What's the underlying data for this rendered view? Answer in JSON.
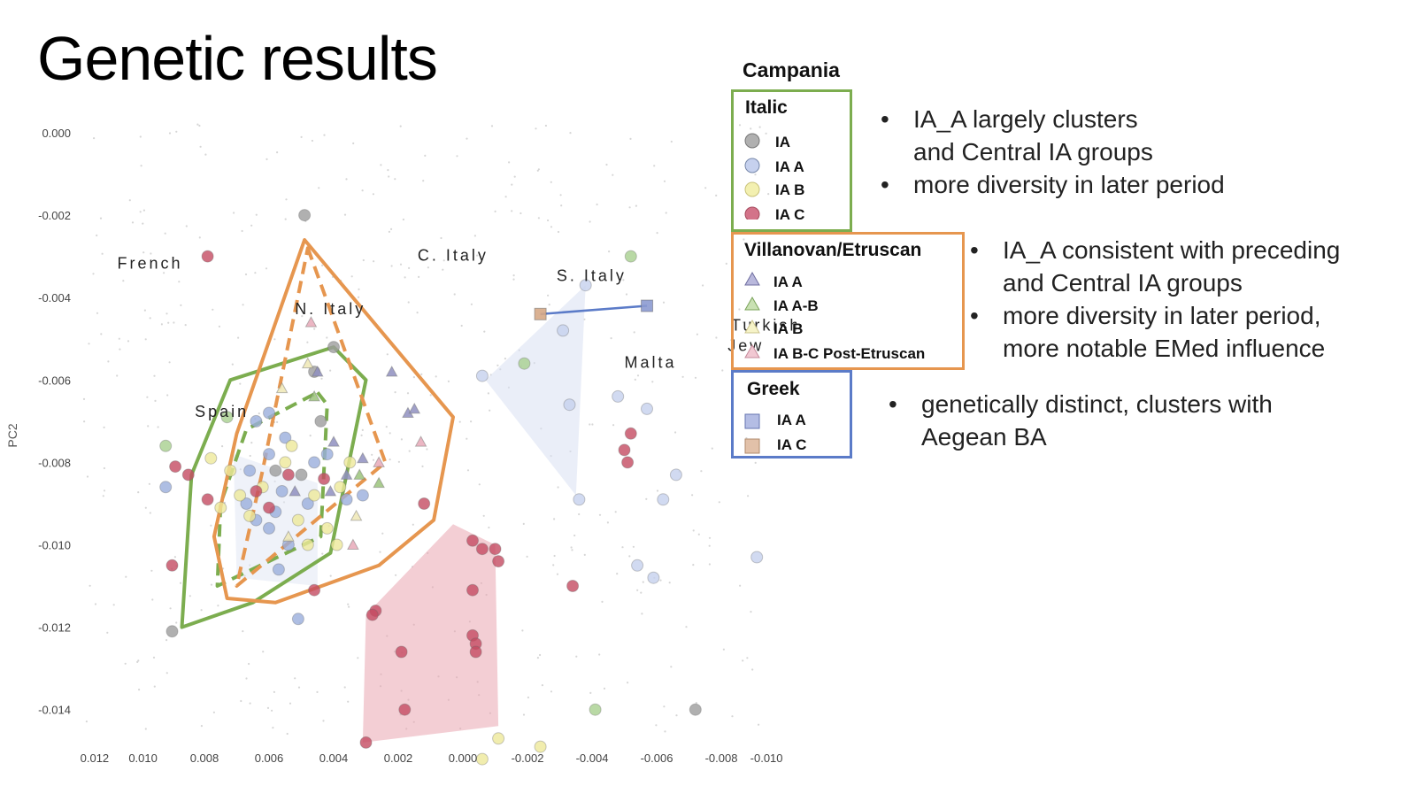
{
  "slide_title": "Genetic results",
  "legend": {
    "title": "Campania",
    "groups": [
      {
        "name": "Italic",
        "border": "#7cad4f",
        "entries": [
          {
            "label": "IA",
            "marker": "circle",
            "color": "#b0b0b0"
          },
          {
            "label": "IA A",
            "marker": "circle",
            "color": "#c6d1ee"
          },
          {
            "label": "IA B",
            "marker": "circle",
            "color": "#f3f0b0"
          },
          {
            "label": "IA C",
            "marker": "circle",
            "color": "#d37389"
          }
        ]
      },
      {
        "name": "Villanovan/Etruscan",
        "border": "#e6964f",
        "entries": [
          {
            "label": "IA A",
            "marker": "triangle",
            "color": "#b9b8dc"
          },
          {
            "label": "IA A-B",
            "marker": "triangle",
            "color": "#c9e1b3"
          },
          {
            "label": "IA B",
            "marker": "triangle",
            "color": "#f6f3c8"
          },
          {
            "label": "IA B-C Post-Etruscan",
            "marker": "triangle",
            "color": "#f1c8d2"
          }
        ]
      },
      {
        "name": "Greek",
        "border": "#5b7bc8",
        "entries": [
          {
            "label": "IA A",
            "marker": "square",
            "color": "#b4bde4"
          },
          {
            "label": "IA C",
            "marker": "square",
            "color": "#e2c1a9"
          }
        ]
      }
    ]
  },
  "notes": {
    "italic": [
      "IA_A largely clusters and Central IA groups",
      "more diversity in later period"
    ],
    "etruscan": [
      "IA_A consistent with preceding and Central IA groups",
      "more diversity in later period, more notable EMed influence"
    ],
    "greek": [
      "genetically distinct, clusters with Aegean BA"
    ],
    "bullet": "•"
  },
  "chart_data": {
    "type": "scatter",
    "ylabel": "PC2",
    "xlabel": "",
    "x_reversed": true,
    "xlim": [
      0.012,
      -0.01
    ],
    "ylim": [
      -0.0152,
      0.0002
    ],
    "x_ticks": [
      "0.012",
      "0.010",
      "0.008",
      "0.006",
      "0.004",
      "0.002",
      "0.000",
      "-0.002",
      "-0.004",
      "-0.006",
      "-0.008",
      "-0.010"
    ],
    "x_tick_values": [
      0.0114,
      0.0099,
      0.008,
      0.006,
      0.004,
      0.002,
      0.0,
      -0.002,
      -0.004,
      -0.006,
      -0.008,
      -0.0094
    ],
    "y_ticks": [
      "0.000",
      "-0.002",
      "-0.004",
      "-0.006",
      "-0.008",
      "-0.010",
      "-0.012",
      "-0.014"
    ],
    "y_tick_values": [
      0.0,
      -0.002,
      -0.004,
      -0.006,
      -0.008,
      -0.01,
      -0.012,
      -0.014
    ],
    "grid": false,
    "region_labels": [
      {
        "text": "French",
        "x": 0.0107,
        "y": -0.0033
      },
      {
        "text": "N. Italy",
        "x": 0.0052,
        "y": -0.0044
      },
      {
        "text": "C. Italy",
        "x": 0.0014,
        "y": -0.0031
      },
      {
        "text": "S. Italy",
        "x": -0.0029,
        "y": -0.0036
      },
      {
        "text": "Malta",
        "x": -0.005,
        "y": -0.0057
      },
      {
        "text": "Turkish",
        "x": -0.0083,
        "y": -0.0048
      },
      {
        "text": "Jew",
        "x": -0.0082,
        "y": -0.0053
      },
      {
        "text": "Spain",
        "x": 0.0083,
        "y": -0.0069
      }
    ],
    "hulls": [
      {
        "series": "Italic IA A hull",
        "color": "#7cad4f",
        "style": "solid",
        "points": [
          [
            0.0072,
            -0.006
          ],
          [
            0.004,
            -0.0052
          ],
          [
            0.003,
            -0.006
          ],
          [
            0.0041,
            -0.0102
          ],
          [
            0.0065,
            -0.0114
          ],
          [
            0.0087,
            -0.012
          ],
          [
            0.0084,
            -0.0083
          ]
        ]
      },
      {
        "series": "Villanovan IA A-B hull",
        "color": "#7cad4f",
        "style": "dashed",
        "points": [
          [
            0.0045,
            -0.0063
          ],
          [
            0.0042,
            -0.0066
          ],
          [
            0.0044,
            -0.0098
          ],
          [
            0.0076,
            -0.011
          ],
          [
            0.0075,
            -0.009
          ],
          [
            0.0067,
            -0.0072
          ]
        ]
      },
      {
        "series": "Villanovan IA A hull",
        "color": "#e6964f",
        "style": "solid",
        "points": [
          [
            0.0049,
            -0.0026
          ],
          [
            0.0003,
            -0.0069
          ],
          [
            0.0009,
            -0.0094
          ],
          [
            0.0026,
            -0.0105
          ],
          [
            0.0058,
            -0.0114
          ],
          [
            0.0073,
            -0.0113
          ],
          [
            0.0077,
            -0.0098
          ],
          [
            0.007,
            -0.0073
          ]
        ]
      },
      {
        "series": "Villanovan IA B hull",
        "color": "#e6964f",
        "style": "dashed",
        "points": [
          [
            0.0048,
            -0.0028
          ],
          [
            0.0024,
            -0.008
          ],
          [
            0.007,
            -0.011
          ],
          [
            0.0062,
            -0.0082
          ]
        ]
      }
    ],
    "fills": [
      {
        "series": "Italic IA C cluster",
        "color": "#e9a6b0",
        "points": [
          [
            0.0003,
            -0.0095
          ],
          [
            -0.001,
            -0.01
          ],
          [
            -0.0011,
            -0.0144
          ],
          [
            0.0031,
            -0.0148
          ],
          [
            0.003,
            -0.0117
          ]
        ]
      },
      {
        "series": "Malta cluster",
        "color": "#d8e0f2",
        "points": [
          [
            -0.0038,
            -0.0037
          ],
          [
            -0.0007,
            -0.006
          ],
          [
            -0.0035,
            -0.0088
          ]
        ]
      },
      {
        "series": "Italic core cluster",
        "color": "#e2e7f4",
        "points": [
          [
            0.0071,
            -0.0078
          ],
          [
            0.0045,
            -0.0085
          ],
          [
            0.0045,
            -0.011
          ],
          [
            0.007,
            -0.0108
          ]
        ]
      }
    ],
    "segments": [
      {
        "series": "Greek IA A-IA C link",
        "color": "#5b7bc8",
        "from": [
          -0.0024,
          -0.0044
        ],
        "to": [
          -0.0057,
          -0.0042
        ]
      }
    ],
    "series": [
      {
        "name": "IA",
        "marker": "circle",
        "color": "#9c9c9c",
        "points": [
          [
            0.0049,
            -0.002
          ],
          [
            0.009,
            -0.0121
          ],
          [
            -0.0072,
            -0.014
          ],
          [
            0.0046,
            -0.0058
          ],
          [
            0.004,
            -0.0052
          ],
          [
            0.0058,
            -0.0082
          ],
          [
            0.005,
            -0.0083
          ],
          [
            0.0044,
            -0.007
          ]
        ]
      },
      {
        "name": "IA A",
        "marker": "circle",
        "color": "#9aaedc",
        "points": [
          [
            0.0092,
            -0.0086
          ],
          [
            0.0051,
            -0.0118
          ],
          [
            0.0057,
            -0.0106
          ],
          [
            0.0031,
            -0.0088
          ],
          [
            0.006,
            -0.0068
          ],
          [
            0.006,
            -0.0078
          ],
          [
            0.0066,
            -0.0082
          ],
          [
            0.0058,
            -0.0092
          ],
          [
            0.0048,
            -0.009
          ],
          [
            0.0046,
            -0.008
          ],
          [
            0.0064,
            -0.0094
          ],
          [
            0.0056,
            -0.0087
          ],
          [
            0.0042,
            -0.0078
          ],
          [
            0.0064,
            -0.007
          ],
          [
            0.0055,
            -0.0074
          ],
          [
            0.0054,
            -0.01
          ],
          [
            0.0036,
            -0.0089
          ],
          [
            0.006,
            -0.0096
          ],
          [
            0.0067,
            -0.009
          ]
        ]
      },
      {
        "name": "IA B",
        "marker": "circle",
        "color": "#ede89a",
        "points": [
          [
            0.0078,
            -0.0079
          ],
          [
            0.0072,
            -0.0082
          ],
          [
            0.0069,
            -0.0088
          ],
          [
            0.0062,
            -0.0086
          ],
          [
            0.0055,
            -0.008
          ],
          [
            0.0051,
            -0.0094
          ],
          [
            0.0046,
            -0.0088
          ],
          [
            0.0042,
            -0.0096
          ],
          [
            0.0038,
            -0.0086
          ],
          [
            0.0035,
            -0.008
          ],
          [
            0.0066,
            -0.0093
          ],
          [
            0.0075,
            -0.0091
          ],
          [
            0.0048,
            -0.01
          ],
          [
            0.0039,
            -0.01
          ],
          [
            -0.0024,
            -0.0149
          ],
          [
            -0.0006,
            -0.0152
          ],
          [
            -0.0011,
            -0.0147
          ],
          [
            0.0053,
            -0.0076
          ]
        ]
      },
      {
        "name": "IA C",
        "marker": "circle",
        "color": "#c44b61",
        "points": [
          [
            0.0079,
            -0.003
          ],
          [
            0.0089,
            -0.0081
          ],
          [
            0.0085,
            -0.0083
          ],
          [
            0.009,
            -0.0105
          ],
          [
            0.0079,
            -0.0089
          ],
          [
            0.0064,
            -0.0087
          ],
          [
            0.0054,
            -0.0083
          ],
          [
            0.006,
            -0.0091
          ],
          [
            0.0043,
            -0.0084
          ],
          [
            0.0046,
            -0.0111
          ],
          [
            0.0012,
            -0.009
          ],
          [
            -0.0003,
            -0.0099
          ],
          [
            -0.0006,
            -0.0101
          ],
          [
            -0.001,
            -0.0101
          ],
          [
            -0.0011,
            -0.0104
          ],
          [
            -0.0003,
            -0.0111
          ],
          [
            0.0027,
            -0.0116
          ],
          [
            0.0028,
            -0.0117
          ],
          [
            0.0019,
            -0.0126
          ],
          [
            -0.0003,
            -0.0122
          ],
          [
            -0.0004,
            -0.0124
          ],
          [
            -0.0004,
            -0.0126
          ],
          [
            0.0018,
            -0.014
          ],
          [
            0.003,
            -0.0148
          ],
          [
            -0.0034,
            -0.011
          ],
          [
            -0.0052,
            -0.0073
          ],
          [
            -0.005,
            -0.0077
          ],
          [
            -0.0051,
            -0.008
          ]
        ]
      },
      {
        "name": "IA A (pale)",
        "marker": "circle",
        "color": "#c6d1ee",
        "points": [
          [
            -0.0006,
            -0.0059
          ],
          [
            -0.0031,
            -0.0048
          ],
          [
            -0.0033,
            -0.0066
          ],
          [
            -0.0036,
            -0.0089
          ],
          [
            -0.0038,
            -0.0037
          ],
          [
            -0.0048,
            -0.0064
          ],
          [
            -0.0057,
            -0.0067
          ],
          [
            -0.0062,
            -0.0089
          ],
          [
            -0.0066,
            -0.0083
          ],
          [
            -0.0054,
            -0.0105
          ],
          [
            -0.0059,
            -0.0108
          ],
          [
            -0.0091,
            -0.0103
          ]
        ]
      },
      {
        "name": "IA (green)",
        "marker": "circle",
        "color": "#a8cf8f",
        "points": [
          [
            -0.0052,
            -0.003
          ],
          [
            -0.0019,
            -0.0056
          ],
          [
            0.0073,
            -0.0069
          ],
          [
            0.0092,
            -0.0076
          ],
          [
            -0.0041,
            -0.014
          ]
        ]
      },
      {
        "name": "Villanovan IA A",
        "marker": "triangle",
        "color": "#8f8fbf",
        "points": [
          [
            0.0022,
            -0.0058
          ],
          [
            0.0017,
            -0.0068
          ],
          [
            0.0015,
            -0.0067
          ],
          [
            0.004,
            -0.0075
          ],
          [
            0.0036,
            -0.0083
          ],
          [
            0.0031,
            -0.0079
          ],
          [
            0.0045,
            -0.0058
          ],
          [
            0.0052,
            -0.0087
          ],
          [
            0.0041,
            -0.0087
          ]
        ]
      },
      {
        "name": "Villanovan IA A-B",
        "marker": "triangle",
        "color": "#9bc37b",
        "points": [
          [
            0.0046,
            -0.0064
          ],
          [
            0.0032,
            -0.0083
          ],
          [
            0.0026,
            -0.0085
          ]
        ]
      },
      {
        "name": "Villanovan IA B",
        "marker": "triangle",
        "color": "#eee8b5",
        "points": [
          [
            0.0056,
            -0.0062
          ],
          [
            0.0033,
            -0.0093
          ],
          [
            0.0048,
            -0.0056
          ],
          [
            0.0054,
            -0.0098
          ]
        ]
      },
      {
        "name": "Villanovan IA B-C",
        "marker": "triangle",
        "color": "#e7a9b8",
        "points": [
          [
            0.0047,
            -0.0046
          ],
          [
            0.0034,
            -0.01
          ],
          [
            0.0026,
            -0.008
          ],
          [
            0.0013,
            -0.0075
          ]
        ]
      },
      {
        "name": "Greek IA A",
        "marker": "square",
        "color": "#8c9ad0",
        "points": [
          [
            -0.0057,
            -0.0042
          ]
        ]
      },
      {
        "name": "Greek IA C",
        "marker": "square",
        "color": "#d6a886",
        "points": [
          [
            -0.0024,
            -0.0044
          ]
        ]
      }
    ]
  }
}
